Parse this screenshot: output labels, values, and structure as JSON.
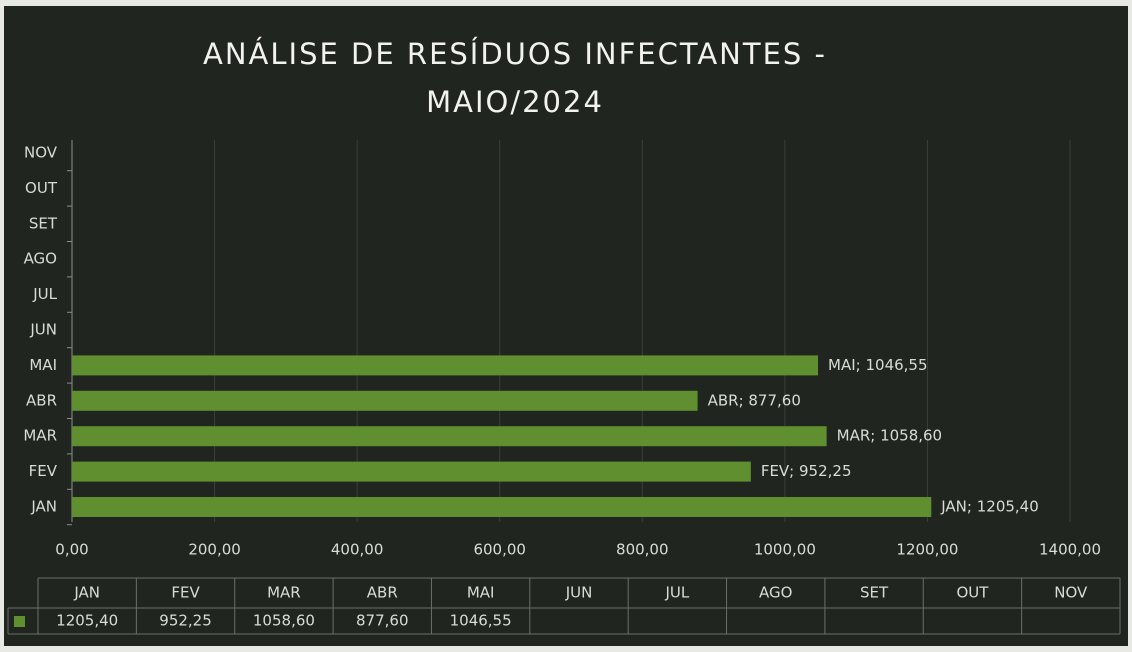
{
  "chart_data": {
    "type": "barh",
    "title": "ANÁLISE DE RESÍDUOS INFECTANTES - MAIO/2024",
    "categories": [
      "JAN",
      "FEV",
      "MAR",
      "ABR",
      "MAI",
      "JUN",
      "JUL",
      "AGO",
      "SET",
      "OUT",
      "NOV"
    ],
    "values": [
      1205.4,
      952.25,
      1058.6,
      877.6,
      1046.55,
      null,
      null,
      null,
      null,
      null,
      null
    ],
    "value_labels": [
      "JAN; 1205,40",
      "FEV; 952,25",
      "MAR; 1058,60",
      "ABR; 877,60",
      "MAI; 1046,55",
      null,
      null,
      null,
      null,
      null,
      null
    ],
    "table_value_labels": [
      "1205,40",
      "952,25",
      "1058,60",
      "877,60",
      "1046,55",
      null,
      null,
      null,
      null,
      null,
      null
    ],
    "color": "#5f8f2f",
    "xlim": [
      0,
      1400
    ],
    "xticks": [
      {
        "value": 0,
        "label": "0,00"
      },
      {
        "value": 200,
        "label": "200,00"
      },
      {
        "value": 400,
        "label": "400,00"
      },
      {
        "value": 600,
        "label": "600,00"
      },
      {
        "value": 800,
        "label": "800,00"
      },
      {
        "value": 1000,
        "label": "1000,00"
      },
      {
        "value": 1200,
        "label": "1200,00"
      },
      {
        "value": 1400,
        "label": "1400,00"
      }
    ],
    "grid": true
  }
}
